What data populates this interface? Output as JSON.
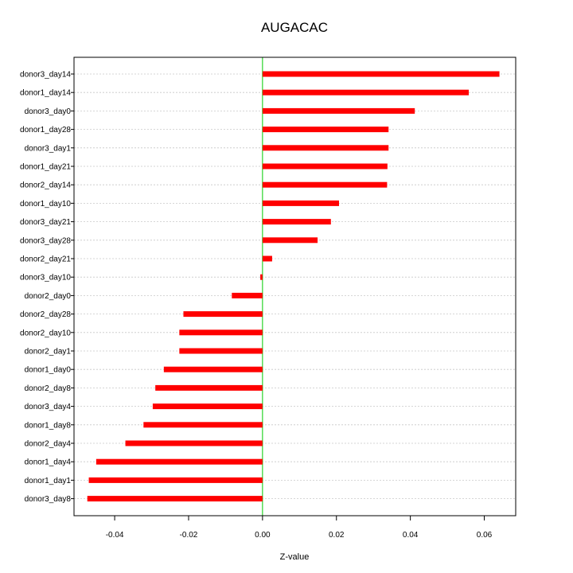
{
  "chart_data": {
    "type": "bar",
    "orientation": "horizontal",
    "title": "AUGACAC",
    "xlabel": "Z-value",
    "ylabel": "",
    "xlim": [
      -0.051,
      0.0685
    ],
    "xticks": [
      -0.04,
      -0.02,
      0.0,
      0.02,
      0.04,
      0.06
    ],
    "xtick_labels": [
      "-0.04",
      "-0.02",
      "0.00",
      "0.02",
      "0.04",
      "0.06"
    ],
    "grid": true,
    "legend": "none",
    "bar_color": "#ff0000",
    "zero_line_color": "#00cc00",
    "categories": [
      "donor3_day14",
      "donor1_day14",
      "donor3_day0",
      "donor1_day28",
      "donor3_day1",
      "donor1_day21",
      "donor2_day14",
      "donor1_day10",
      "donor3_day21",
      "donor3_day28",
      "donor2_day21",
      "donor3_day10",
      "donor2_day0",
      "donor2_day28",
      "donor2_day10",
      "donor2_day1",
      "donor1_day0",
      "donor2_day8",
      "donor3_day4",
      "donor1_day8",
      "donor2_day4",
      "donor1_day4",
      "donor1_day1",
      "donor3_day8"
    ],
    "values": [
      0.0641,
      0.0558,
      0.0412,
      0.0341,
      0.0341,
      0.0338,
      0.0337,
      0.0207,
      0.0185,
      0.0149,
      0.0026,
      -0.0006,
      -0.0083,
      -0.0214,
      -0.0225,
      -0.0225,
      -0.0267,
      -0.029,
      -0.0297,
      -0.0322,
      -0.0371,
      -0.045,
      -0.047,
      -0.0474
    ]
  }
}
